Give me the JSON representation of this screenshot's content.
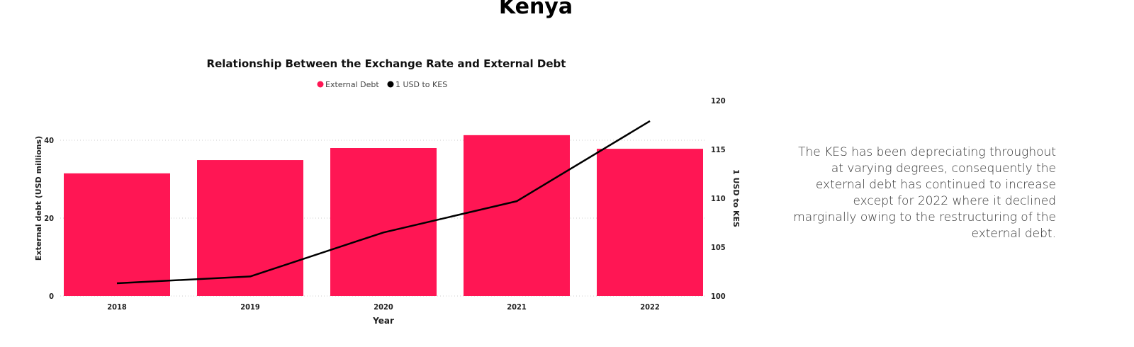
{
  "page_title": "Kenya",
  "note": "The KES has been depreciating throughout at varying degrees, consequently the external debt has continued to increase except for 2022 where it declined marginally owing to the restructuring of the external debt.",
  "chart_data": {
    "type": "bar+line",
    "title": "Relationship Between the Exchange Rate and External Debt",
    "categories": [
      "2018",
      "2019",
      "2020",
      "2021",
      "2022"
    ],
    "xlabel": "Year",
    "ylabel": "External debt (USD millions)",
    "y2label": "1 USD to KES",
    "ylim": [
      0,
      50
    ],
    "y2lim": [
      100,
      120
    ],
    "yticks": [
      0,
      20,
      40
    ],
    "y2ticks": [
      100,
      105,
      110,
      115,
      120
    ],
    "legend_position": "top-center",
    "series": [
      {
        "name": "External Debt",
        "type": "bar",
        "axis": "left",
        "color": "#ff1654",
        "values": [
          31.5,
          34.9,
          38.0,
          41.3,
          37.8
        ]
      },
      {
        "name": "1 USD to KES",
        "type": "line",
        "axis": "right",
        "color": "#000000",
        "values": [
          101.3,
          102.0,
          106.5,
          109.7,
          117.9
        ]
      }
    ]
  }
}
